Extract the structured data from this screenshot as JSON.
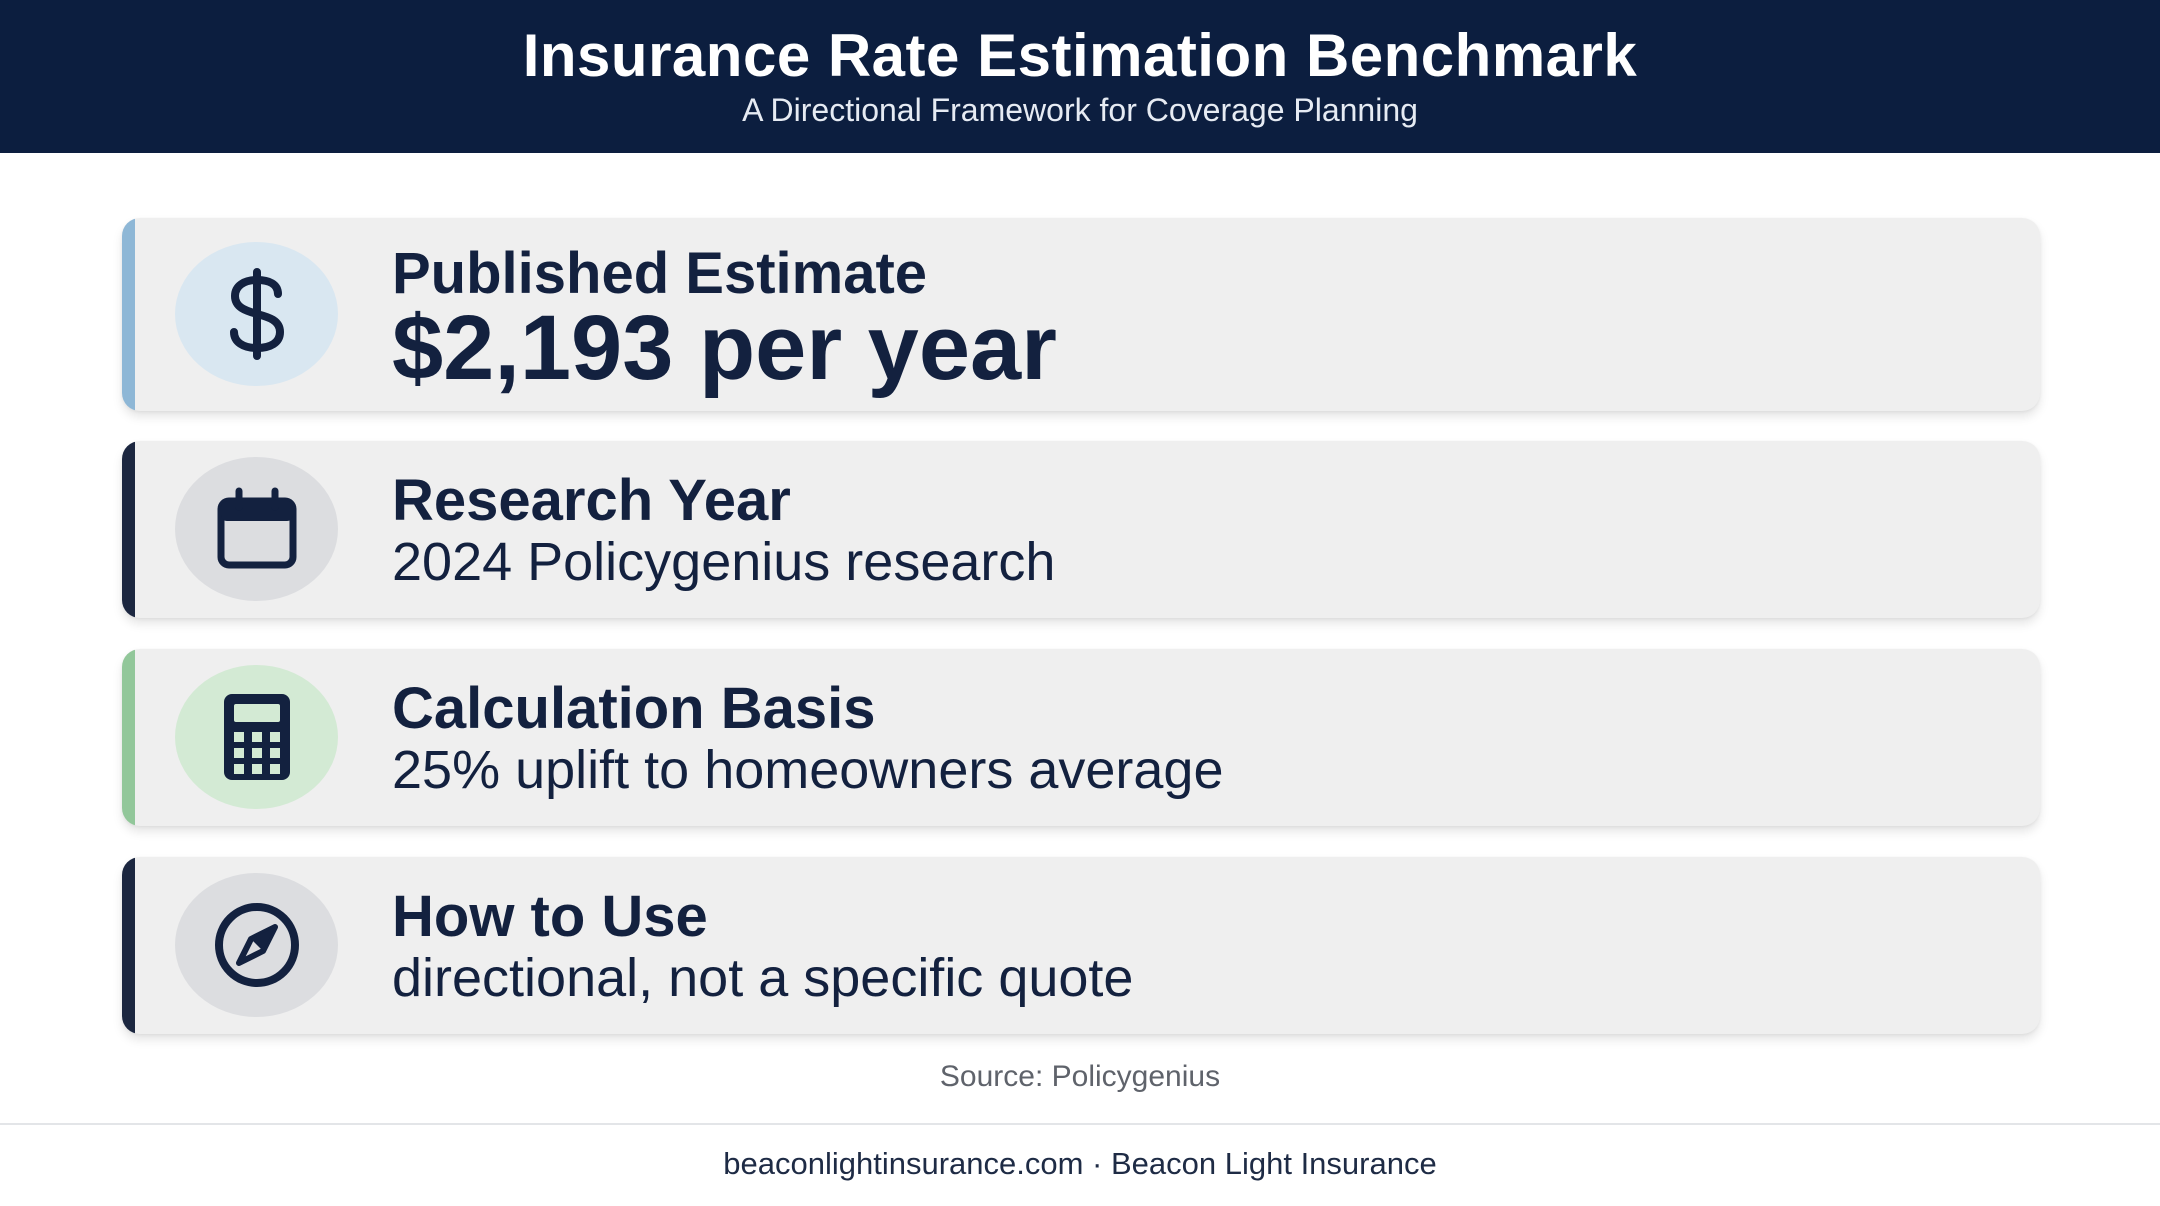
{
  "header": {
    "title": "Insurance Rate Estimation Benchmark",
    "subtitle": "A Directional Framework for Coverage Planning"
  },
  "cards": [
    {
      "label": "Published Estimate",
      "value": "$2,193 per year",
      "icon": "dollar-icon",
      "accent_color": "#8eb7d6",
      "icon_bg": "#d9e7f1"
    },
    {
      "label": "Research Year",
      "value": "2024 Policygenius research",
      "icon": "calendar-icon",
      "accent_color": "#1c2740",
      "icon_bg": "#dcdde0"
    },
    {
      "label": "Calculation Basis",
      "value": "25% uplift to homeowners average",
      "icon": "calculator-icon",
      "accent_color": "#92c79a",
      "icon_bg": "#d3ead4"
    },
    {
      "label": "How to Use",
      "value": "directional, not a specific quote",
      "icon": "compass-icon",
      "accent_color": "#1c2740",
      "icon_bg": "#dcdde0"
    }
  ],
  "source": "Source: Policygenius",
  "footer": "beaconlightinsurance.com · Beacon Light Insurance",
  "colors": {
    "header_bg": "#0c1e3f",
    "card_bg": "#efefef",
    "text_dark": "#13213f"
  }
}
